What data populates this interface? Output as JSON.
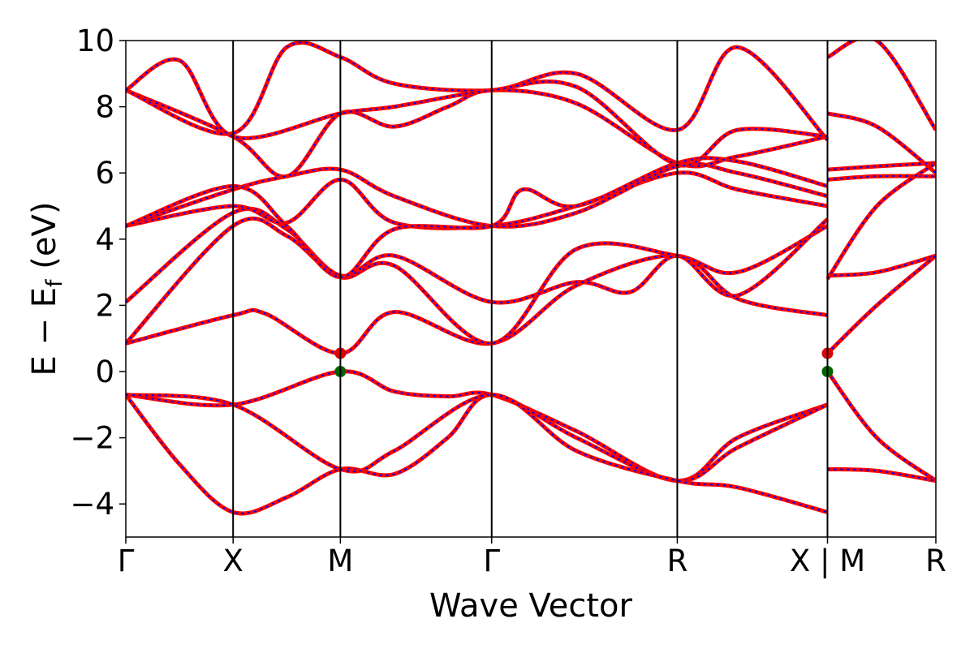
{
  "chart_data": {
    "type": "line",
    "title": "",
    "xlabel": "Wave Vector",
    "ylabel": "E − E",
    "ylabel_sub": "f",
    "ylabel_unit": " (eV)",
    "ylim": [
      -5,
      10
    ],
    "yticks": [
      -4,
      -2,
      0,
      2,
      4,
      6,
      8,
      10
    ],
    "ytick_labels": [
      "−4",
      "−2",
      "0",
      "2",
      "4",
      "6",
      "8",
      "10"
    ],
    "grid": false,
    "kpath_positions": [
      0,
      1,
      2,
      3.41,
      5.14,
      6.54,
      7.55
    ],
    "kpath_labels": [
      "Γ",
      "X",
      "M",
      "Γ",
      "R",
      "X | M",
      "R"
    ],
    "xlim": [
      0,
      7.55
    ],
    "line_colors": {
      "primary": "#ff0000",
      "overlay": "#0000ff"
    },
    "marker_colors": {
      "cbm": "#e00000",
      "vbm": "#006400"
    },
    "markers": [
      {
        "name": "CBM",
        "points": [
          [
            2,
            0.55
          ],
          [
            6.54,
            0.55
          ]
        ]
      },
      {
        "name": "VBM",
        "points": [
          [
            2,
            0.0
          ],
          [
            6.54,
            0.0
          ]
        ]
      }
    ],
    "series": [
      {
        "points": [
          [
            0,
            -0.7
          ],
          [
            1,
            -1.0
          ],
          [
            2,
            0.0
          ],
          [
            2.5,
            -0.6
          ],
          [
            3,
            -0.75
          ],
          [
            3.41,
            -0.7
          ],
          [
            4.2,
            -1.8
          ],
          [
            5.14,
            -3.3
          ],
          [
            5.7,
            -2.0
          ],
          [
            6.54,
            -1.0
          ]
        ]
      },
      {
        "points": [
          [
            0,
            -0.7
          ],
          [
            0.5,
            -2.8
          ],
          [
            1,
            -4.25
          ],
          [
            1.5,
            -3.8
          ],
          [
            2,
            -2.95
          ],
          [
            2.5,
            -3.1
          ],
          [
            3,
            -2.0
          ],
          [
            3.41,
            -0.7
          ],
          [
            4.2,
            -2.0
          ],
          [
            5.14,
            -3.3
          ],
          [
            5.7,
            -2.3
          ],
          [
            6.54,
            -1.0
          ]
        ]
      },
      {
        "points": [
          [
            0,
            -0.7
          ],
          [
            1,
            -1.0
          ],
          [
            2,
            -2.95
          ],
          [
            2.5,
            -2.4
          ],
          [
            3.41,
            -0.7
          ],
          [
            4.2,
            -2.4
          ],
          [
            5.14,
            -3.3
          ],
          [
            5.7,
            -3.5
          ],
          [
            6.54,
            -4.25
          ]
        ]
      },
      {
        "points": [
          [
            0,
            0.85
          ],
          [
            1,
            1.7
          ],
          [
            1.3,
            1.75
          ],
          [
            2,
            0.55
          ],
          [
            2.5,
            1.8
          ],
          [
            3.41,
            0.85
          ],
          [
            4.2,
            2.6
          ],
          [
            5.14,
            3.5
          ],
          [
            5.7,
            2.2
          ],
          [
            6.54,
            1.7
          ]
        ]
      },
      {
        "points": [
          [
            0,
            0.85
          ],
          [
            1,
            4.4
          ],
          [
            1.5,
            4.1
          ],
          [
            2,
            2.85
          ],
          [
            2.5,
            3.2
          ],
          [
            3.41,
            0.85
          ],
          [
            4.2,
            3.7
          ],
          [
            5.14,
            3.5
          ],
          [
            5.7,
            3.0
          ],
          [
            6.54,
            4.4
          ]
        ]
      },
      {
        "points": [
          [
            0,
            2.1
          ],
          [
            1,
            4.8
          ],
          [
            1.5,
            4.3
          ],
          [
            2,
            2.9
          ],
          [
            2.5,
            3.5
          ],
          [
            3.41,
            2.1
          ],
          [
            4.2,
            2.7
          ],
          [
            4.7,
            2.4
          ],
          [
            5.14,
            3.5
          ],
          [
            5.7,
            2.3
          ],
          [
            6.54,
            4.6
          ]
        ]
      },
      {
        "points": [
          [
            0,
            4.4
          ],
          [
            1,
            5.0
          ],
          [
            1.5,
            4.5
          ],
          [
            2,
            5.8
          ],
          [
            2.5,
            4.5
          ],
          [
            3.41,
            4.4
          ],
          [
            4.2,
            5.0
          ],
          [
            5.14,
            6.0
          ],
          [
            5.7,
            5.5
          ],
          [
            6.54,
            5.0
          ]
        ]
      },
      {
        "points": [
          [
            0,
            4.4
          ],
          [
            1,
            5.5
          ],
          [
            1.5,
            5.9
          ],
          [
            2,
            6.1
          ],
          [
            2.5,
            5.3
          ],
          [
            3.41,
            4.4
          ],
          [
            4.2,
            4.8
          ],
          [
            5.14,
            6.2
          ],
          [
            5.7,
            6.0
          ],
          [
            6.54,
            5.3
          ]
        ]
      },
      {
        "points": [
          [
            0,
            4.4
          ],
          [
            1,
            5.6
          ],
          [
            1.5,
            4.4
          ],
          [
            2,
            2.85
          ],
          [
            2.5,
            4.3
          ],
          [
            3.41,
            4.4
          ],
          [
            3.7,
            5.5
          ],
          [
            4.2,
            5.0
          ],
          [
            5.14,
            6.3
          ],
          [
            5.7,
            6.35
          ],
          [
            6.54,
            5.6
          ]
        ]
      },
      {
        "points": [
          [
            0,
            8.5
          ],
          [
            1,
            7.1
          ],
          [
            1.5,
            5.9
          ],
          [
            2,
            7.8
          ],
          [
            2.5,
            7.4
          ],
          [
            3,
            8.0
          ],
          [
            3.41,
            8.5
          ],
          [
            4.2,
            8.1
          ],
          [
            5.14,
            6.3
          ],
          [
            5.7,
            6.5
          ],
          [
            6.54,
            7.1
          ]
        ]
      },
      {
        "points": [
          [
            0,
            8.5
          ],
          [
            1,
            7.2
          ],
          [
            1.5,
            9.8
          ],
          [
            2,
            9.5
          ],
          [
            2.5,
            8.7
          ],
          [
            3.41,
            8.5
          ],
          [
            4.2,
            9.0
          ],
          [
            5.14,
            7.3
          ],
          [
            5.7,
            9.8
          ],
          [
            6.54,
            7.0
          ]
        ]
      },
      {
        "points": [
          [
            0,
            8.5
          ],
          [
            0.5,
            9.4
          ],
          [
            1,
            7.1
          ],
          [
            2,
            7.8
          ],
          [
            2.5,
            8.0
          ],
          [
            3.41,
            8.5
          ],
          [
            4.2,
            8.6
          ],
          [
            5.14,
            6.25
          ],
          [
            5.7,
            7.3
          ],
          [
            6.54,
            7.1
          ]
        ]
      },
      {
        "points": [
          [
            6.54,
            9.5
          ],
          [
            7.0,
            10.0
          ],
          [
            7.55,
            7.3
          ]
        ]
      },
      {
        "points": [
          [
            6.54,
            7.8
          ],
          [
            7.0,
            7.4
          ],
          [
            7.55,
            6.0
          ]
        ]
      },
      {
        "points": [
          [
            6.54,
            6.1
          ],
          [
            7.0,
            6.2
          ],
          [
            7.55,
            6.3
          ]
        ]
      },
      {
        "points": [
          [
            6.54,
            5.8
          ],
          [
            7.0,
            5.9
          ],
          [
            7.55,
            5.9
          ]
        ]
      },
      {
        "points": [
          [
            6.54,
            2.9
          ],
          [
            7.0,
            3.0
          ],
          [
            7.55,
            3.5
          ]
        ]
      },
      {
        "points": [
          [
            6.54,
            2.8
          ],
          [
            7.0,
            5.0
          ],
          [
            7.55,
            6.3
          ]
        ]
      },
      {
        "points": [
          [
            6.54,
            0.55
          ],
          [
            7.0,
            2.0
          ],
          [
            7.55,
            3.5
          ]
        ]
      },
      {
        "points": [
          [
            6.54,
            0.0
          ],
          [
            7.0,
            -2.0
          ],
          [
            7.55,
            -3.3
          ]
        ]
      },
      {
        "points": [
          [
            6.54,
            -2.95
          ],
          [
            7.0,
            -3.0
          ],
          [
            7.55,
            -3.3
          ]
        ]
      }
    ]
  }
}
